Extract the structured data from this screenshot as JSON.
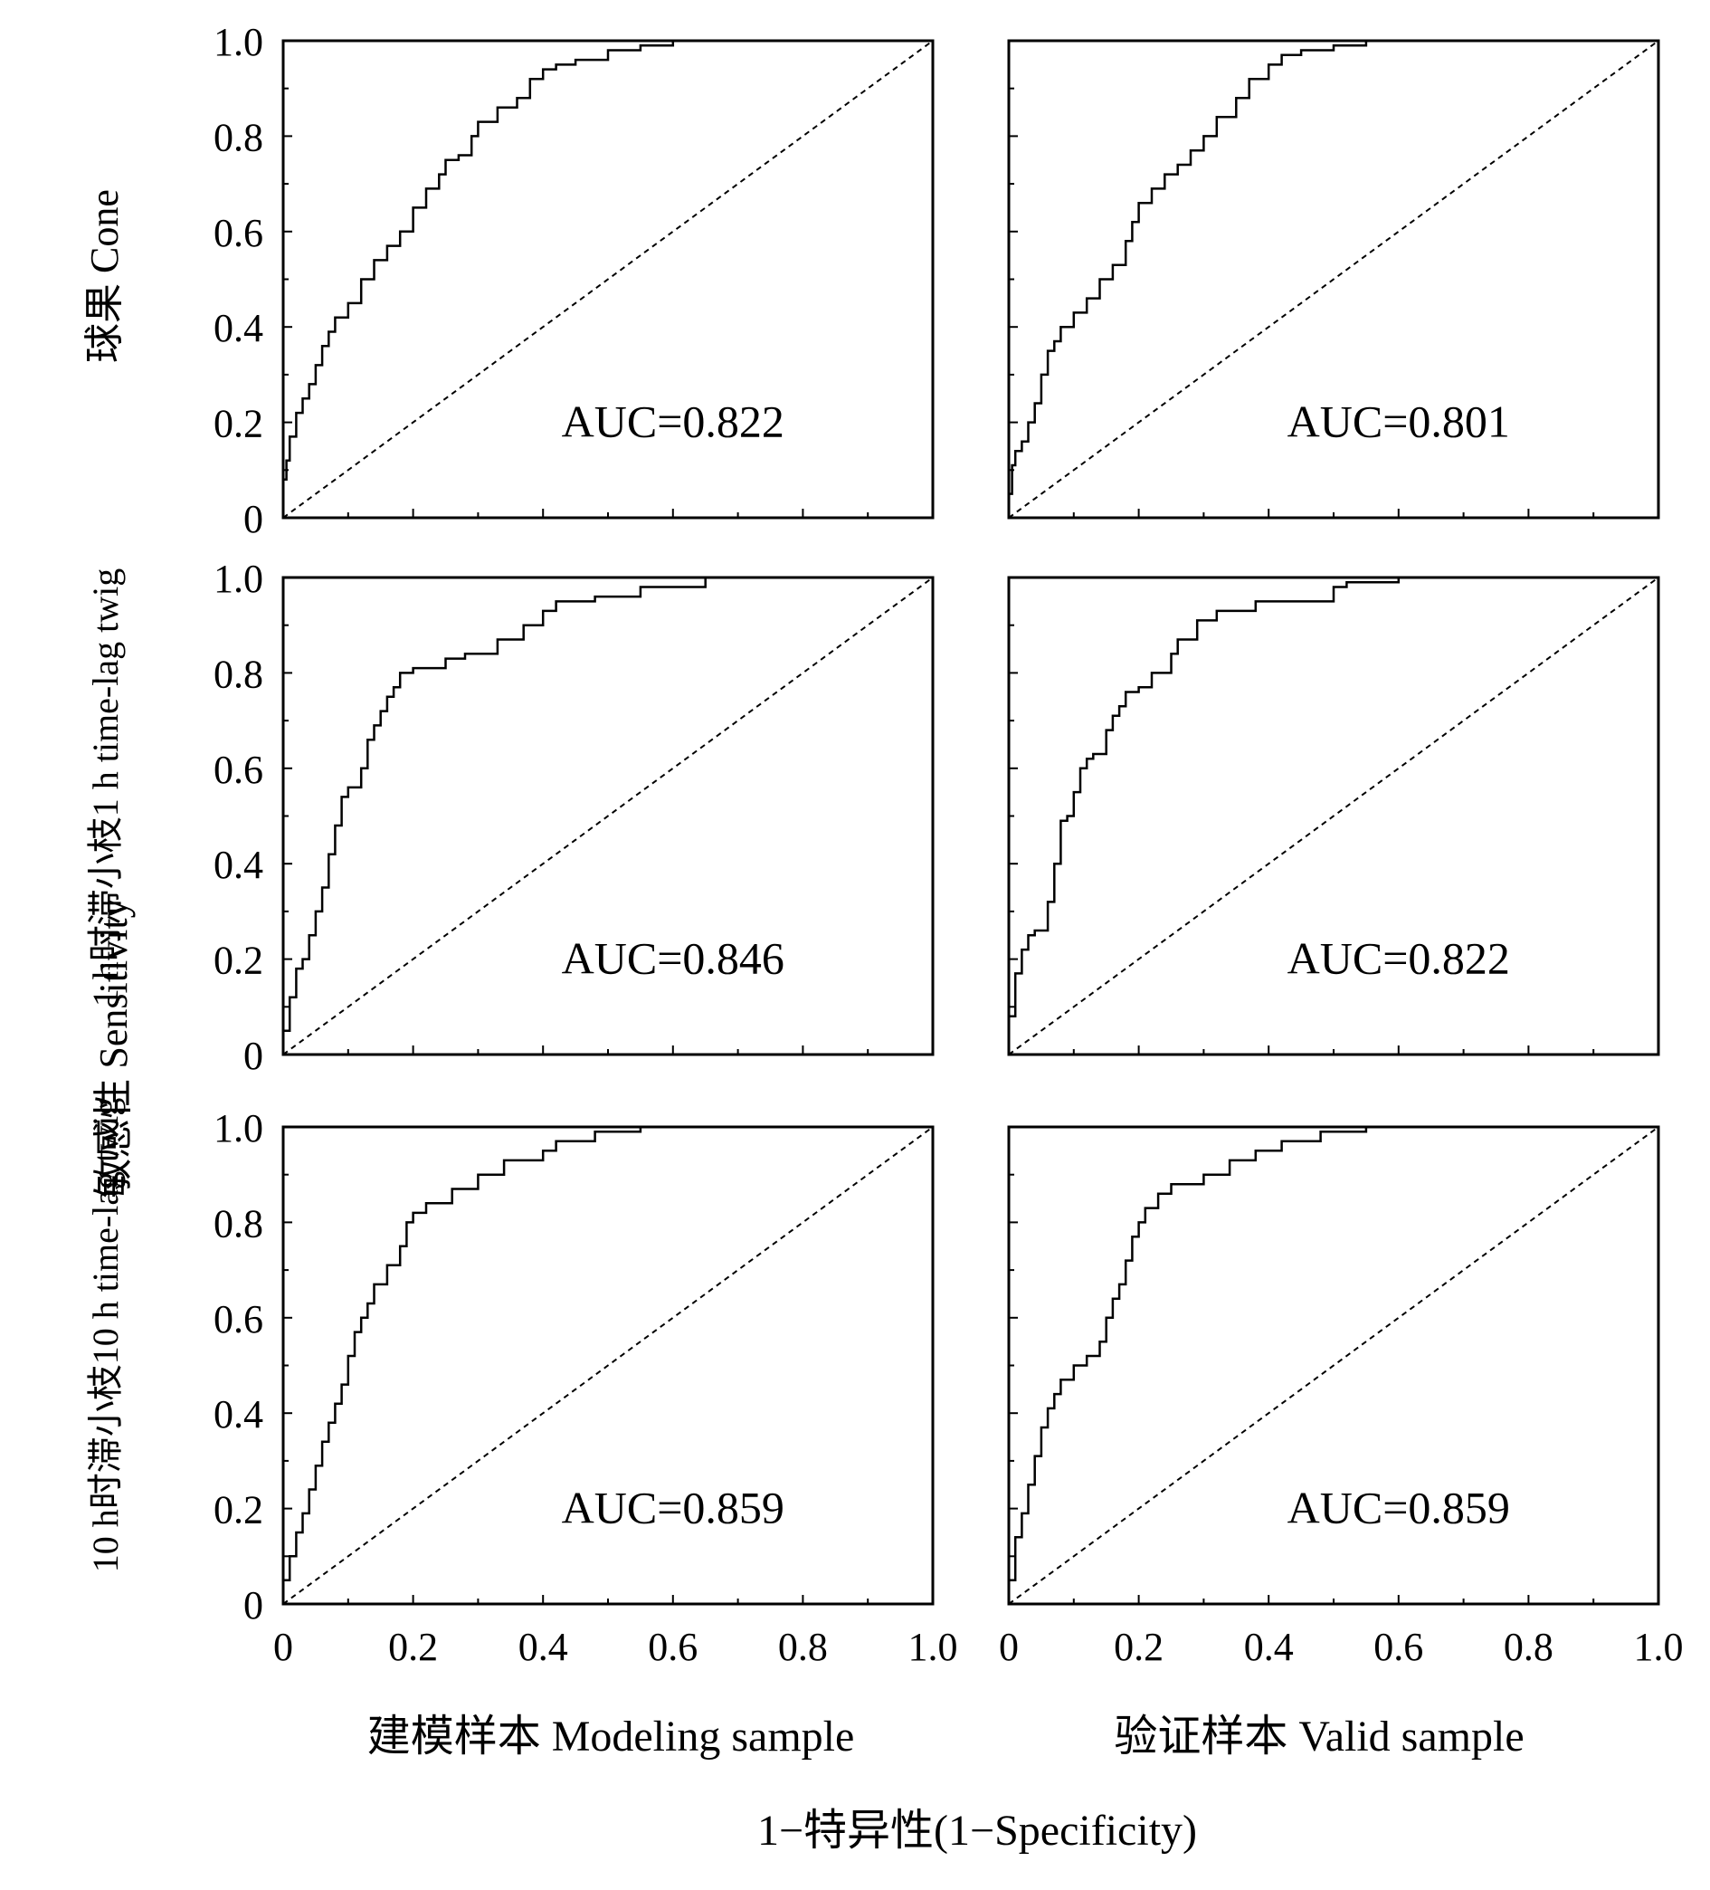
{
  "figure": {
    "y_axis_title": "敏感性  Sensitivity",
    "x_axis_title": "1−特异性(1−Specificity)",
    "column_labels": [
      "建模样本  Modeling sample",
      "验证样本  Valid sample"
    ],
    "row_labels": [
      "球果  Cone",
      "1 h时滞小枝1 h time-lag twig",
      "10 h时滞小枝10 h time-lag twig"
    ],
    "tick_labels": [
      "0",
      "0.2",
      "0.4",
      "0.6",
      "0.8",
      "1.0"
    ]
  },
  "chart_data": [
    {
      "type": "line",
      "row": 0,
      "col": 0,
      "annotation": "AUC=0.822",
      "xlim": [
        0,
        1
      ],
      "ylim": [
        0,
        1
      ],
      "series": [
        {
          "values": [
            [
              0,
              0
            ],
            [
              0.005,
              0.08
            ],
            [
              0.01,
              0.12
            ],
            [
              0.02,
              0.17
            ],
            [
              0.03,
              0.22
            ],
            [
              0.04,
              0.25
            ],
            [
              0.05,
              0.28
            ],
            [
              0.06,
              0.32
            ],
            [
              0.07,
              0.36
            ],
            [
              0.08,
              0.39
            ],
            [
              0.1,
              0.42
            ],
            [
              0.12,
              0.45
            ],
            [
              0.14,
              0.5
            ],
            [
              0.16,
              0.54
            ],
            [
              0.18,
              0.57
            ],
            [
              0.2,
              0.6
            ],
            [
              0.22,
              0.65
            ],
            [
              0.24,
              0.69
            ],
            [
              0.25,
              0.72
            ],
            [
              0.27,
              0.75
            ],
            [
              0.29,
              0.76
            ],
            [
              0.3,
              0.8
            ],
            [
              0.33,
              0.83
            ],
            [
              0.36,
              0.86
            ],
            [
              0.38,
              0.88
            ],
            [
              0.4,
              0.92
            ],
            [
              0.42,
              0.94
            ],
            [
              0.45,
              0.95
            ],
            [
              0.5,
              0.96
            ],
            [
              0.55,
              0.98
            ],
            [
              0.6,
              0.99
            ],
            [
              0.8,
              1.0
            ]
          ]
        },
        {
          "values": [
            [
              0,
              0
            ],
            [
              1,
              1
            ]
          ]
        }
      ]
    },
    {
      "type": "line",
      "row": 0,
      "col": 1,
      "annotation": "AUC=0.801",
      "xlim": [
        0,
        1
      ],
      "ylim": [
        0,
        1
      ],
      "series": [
        {
          "values": [
            [
              0,
              0
            ],
            [
              0.005,
              0.05
            ],
            [
              0.01,
              0.11
            ],
            [
              0.02,
              0.14
            ],
            [
              0.03,
              0.16
            ],
            [
              0.04,
              0.2
            ],
            [
              0.05,
              0.24
            ],
            [
              0.06,
              0.3
            ],
            [
              0.07,
              0.35
            ],
            [
              0.08,
              0.37
            ],
            [
              0.1,
              0.4
            ],
            [
              0.12,
              0.43
            ],
            [
              0.14,
              0.46
            ],
            [
              0.16,
              0.5
            ],
            [
              0.18,
              0.53
            ],
            [
              0.19,
              0.58
            ],
            [
              0.2,
              0.62
            ],
            [
              0.22,
              0.66
            ],
            [
              0.24,
              0.69
            ],
            [
              0.26,
              0.72
            ],
            [
              0.28,
              0.74
            ],
            [
              0.3,
              0.77
            ],
            [
              0.32,
              0.8
            ],
            [
              0.35,
              0.84
            ],
            [
              0.37,
              0.88
            ],
            [
              0.4,
              0.92
            ],
            [
              0.42,
              0.95
            ],
            [
              0.45,
              0.97
            ],
            [
              0.5,
              0.98
            ],
            [
              0.55,
              0.99
            ],
            [
              0.65,
              1.0
            ]
          ]
        },
        {
          "values": [
            [
              0,
              0
            ],
            [
              1,
              1
            ]
          ]
        }
      ]
    },
    {
      "type": "line",
      "row": 1,
      "col": 0,
      "annotation": "AUC=0.846",
      "xlim": [
        0,
        1
      ],
      "ylim": [
        0,
        1
      ],
      "series": [
        {
          "values": [
            [
              0,
              0
            ],
            [
              0.01,
              0.05
            ],
            [
              0.02,
              0.12
            ],
            [
              0.03,
              0.18
            ],
            [
              0.04,
              0.2
            ],
            [
              0.05,
              0.25
            ],
            [
              0.06,
              0.3
            ],
            [
              0.07,
              0.35
            ],
            [
              0.08,
              0.42
            ],
            [
              0.09,
              0.48
            ],
            [
              0.1,
              0.54
            ],
            [
              0.12,
              0.56
            ],
            [
              0.13,
              0.6
            ],
            [
              0.14,
              0.66
            ],
            [
              0.15,
              0.69
            ],
            [
              0.16,
              0.72
            ],
            [
              0.17,
              0.75
            ],
            [
              0.18,
              0.77
            ],
            [
              0.2,
              0.8
            ],
            [
              0.25,
              0.81
            ],
            [
              0.28,
              0.83
            ],
            [
              0.33,
              0.84
            ],
            [
              0.37,
              0.87
            ],
            [
              0.4,
              0.9
            ],
            [
              0.42,
              0.93
            ],
            [
              0.48,
              0.95
            ],
            [
              0.55,
              0.96
            ],
            [
              0.65,
              0.98
            ],
            [
              0.72,
              1.0
            ],
            [
              0.82,
              1.0
            ]
          ]
        },
        {
          "values": [
            [
              0,
              0
            ],
            [
              1,
              1
            ]
          ]
        }
      ]
    },
    {
      "type": "line",
      "row": 1,
      "col": 1,
      "annotation": "AUC=0.822",
      "xlim": [
        0,
        1
      ],
      "ylim": [
        0,
        1
      ],
      "series": [
        {
          "values": [
            [
              0,
              0
            ],
            [
              0.01,
              0.08
            ],
            [
              0.02,
              0.17
            ],
            [
              0.03,
              0.22
            ],
            [
              0.04,
              0.25
            ],
            [
              0.06,
              0.26
            ],
            [
              0.07,
              0.32
            ],
            [
              0.08,
              0.4
            ],
            [
              0.09,
              0.49
            ],
            [
              0.1,
              0.5
            ],
            [
              0.11,
              0.55
            ],
            [
              0.12,
              0.6
            ],
            [
              0.13,
              0.62
            ],
            [
              0.15,
              0.63
            ],
            [
              0.16,
              0.68
            ],
            [
              0.17,
              0.71
            ],
            [
              0.18,
              0.73
            ],
            [
              0.2,
              0.76
            ],
            [
              0.22,
              0.77
            ],
            [
              0.25,
              0.8
            ],
            [
              0.26,
              0.84
            ],
            [
              0.29,
              0.87
            ],
            [
              0.32,
              0.91
            ],
            [
              0.38,
              0.93
            ],
            [
              0.5,
              0.95
            ],
            [
              0.52,
              0.98
            ],
            [
              0.6,
              0.99
            ],
            [
              0.63,
              1.0
            ]
          ]
        },
        {
          "values": [
            [
              0,
              0
            ],
            [
              1,
              1
            ]
          ]
        }
      ]
    },
    {
      "type": "line",
      "row": 2,
      "col": 0,
      "annotation": "AUC=0.859",
      "xlim": [
        0,
        1
      ],
      "ylim": [
        0,
        1
      ],
      "series": [
        {
          "values": [
            [
              0,
              0
            ],
            [
              0.01,
              0.05
            ],
            [
              0.02,
              0.1
            ],
            [
              0.03,
              0.15
            ],
            [
              0.04,
              0.19
            ],
            [
              0.05,
              0.24
            ],
            [
              0.06,
              0.29
            ],
            [
              0.07,
              0.34
            ],
            [
              0.08,
              0.38
            ],
            [
              0.09,
              0.42
            ],
            [
              0.1,
              0.46
            ],
            [
              0.11,
              0.52
            ],
            [
              0.12,
              0.57
            ],
            [
              0.13,
              0.6
            ],
            [
              0.14,
              0.63
            ],
            [
              0.16,
              0.67
            ],
            [
              0.18,
              0.71
            ],
            [
              0.19,
              0.75
            ],
            [
              0.2,
              0.8
            ],
            [
              0.22,
              0.82
            ],
            [
              0.26,
              0.84
            ],
            [
              0.3,
              0.87
            ],
            [
              0.34,
              0.9
            ],
            [
              0.4,
              0.93
            ],
            [
              0.42,
              0.95
            ],
            [
              0.48,
              0.97
            ],
            [
              0.55,
              0.99
            ],
            [
              0.62,
              1.0
            ]
          ]
        },
        {
          "values": [
            [
              0,
              0
            ],
            [
              1,
              1
            ]
          ]
        }
      ]
    },
    {
      "type": "line",
      "row": 2,
      "col": 1,
      "annotation": "AUC=0.859",
      "xlim": [
        0,
        1
      ],
      "ylim": [
        0,
        1
      ],
      "series": [
        {
          "values": [
            [
              0,
              0
            ],
            [
              0.01,
              0.05
            ],
            [
              0.02,
              0.14
            ],
            [
              0.03,
              0.19
            ],
            [
              0.04,
              0.25
            ],
            [
              0.05,
              0.31
            ],
            [
              0.06,
              0.37
            ],
            [
              0.07,
              0.41
            ],
            [
              0.08,
              0.44
            ],
            [
              0.1,
              0.47
            ],
            [
              0.12,
              0.5
            ],
            [
              0.14,
              0.52
            ],
            [
              0.15,
              0.55
            ],
            [
              0.16,
              0.6
            ],
            [
              0.17,
              0.64
            ],
            [
              0.18,
              0.67
            ],
            [
              0.19,
              0.72
            ],
            [
              0.2,
              0.77
            ],
            [
              0.21,
              0.8
            ],
            [
              0.23,
              0.83
            ],
            [
              0.25,
              0.86
            ],
            [
              0.3,
              0.88
            ],
            [
              0.34,
              0.9
            ],
            [
              0.38,
              0.93
            ],
            [
              0.42,
              0.95
            ],
            [
              0.48,
              0.97
            ],
            [
              0.55,
              0.99
            ],
            [
              0.67,
              1.0
            ]
          ]
        },
        {
          "values": [
            [
              0,
              0
            ],
            [
              1,
              1
            ]
          ]
        }
      ]
    }
  ]
}
